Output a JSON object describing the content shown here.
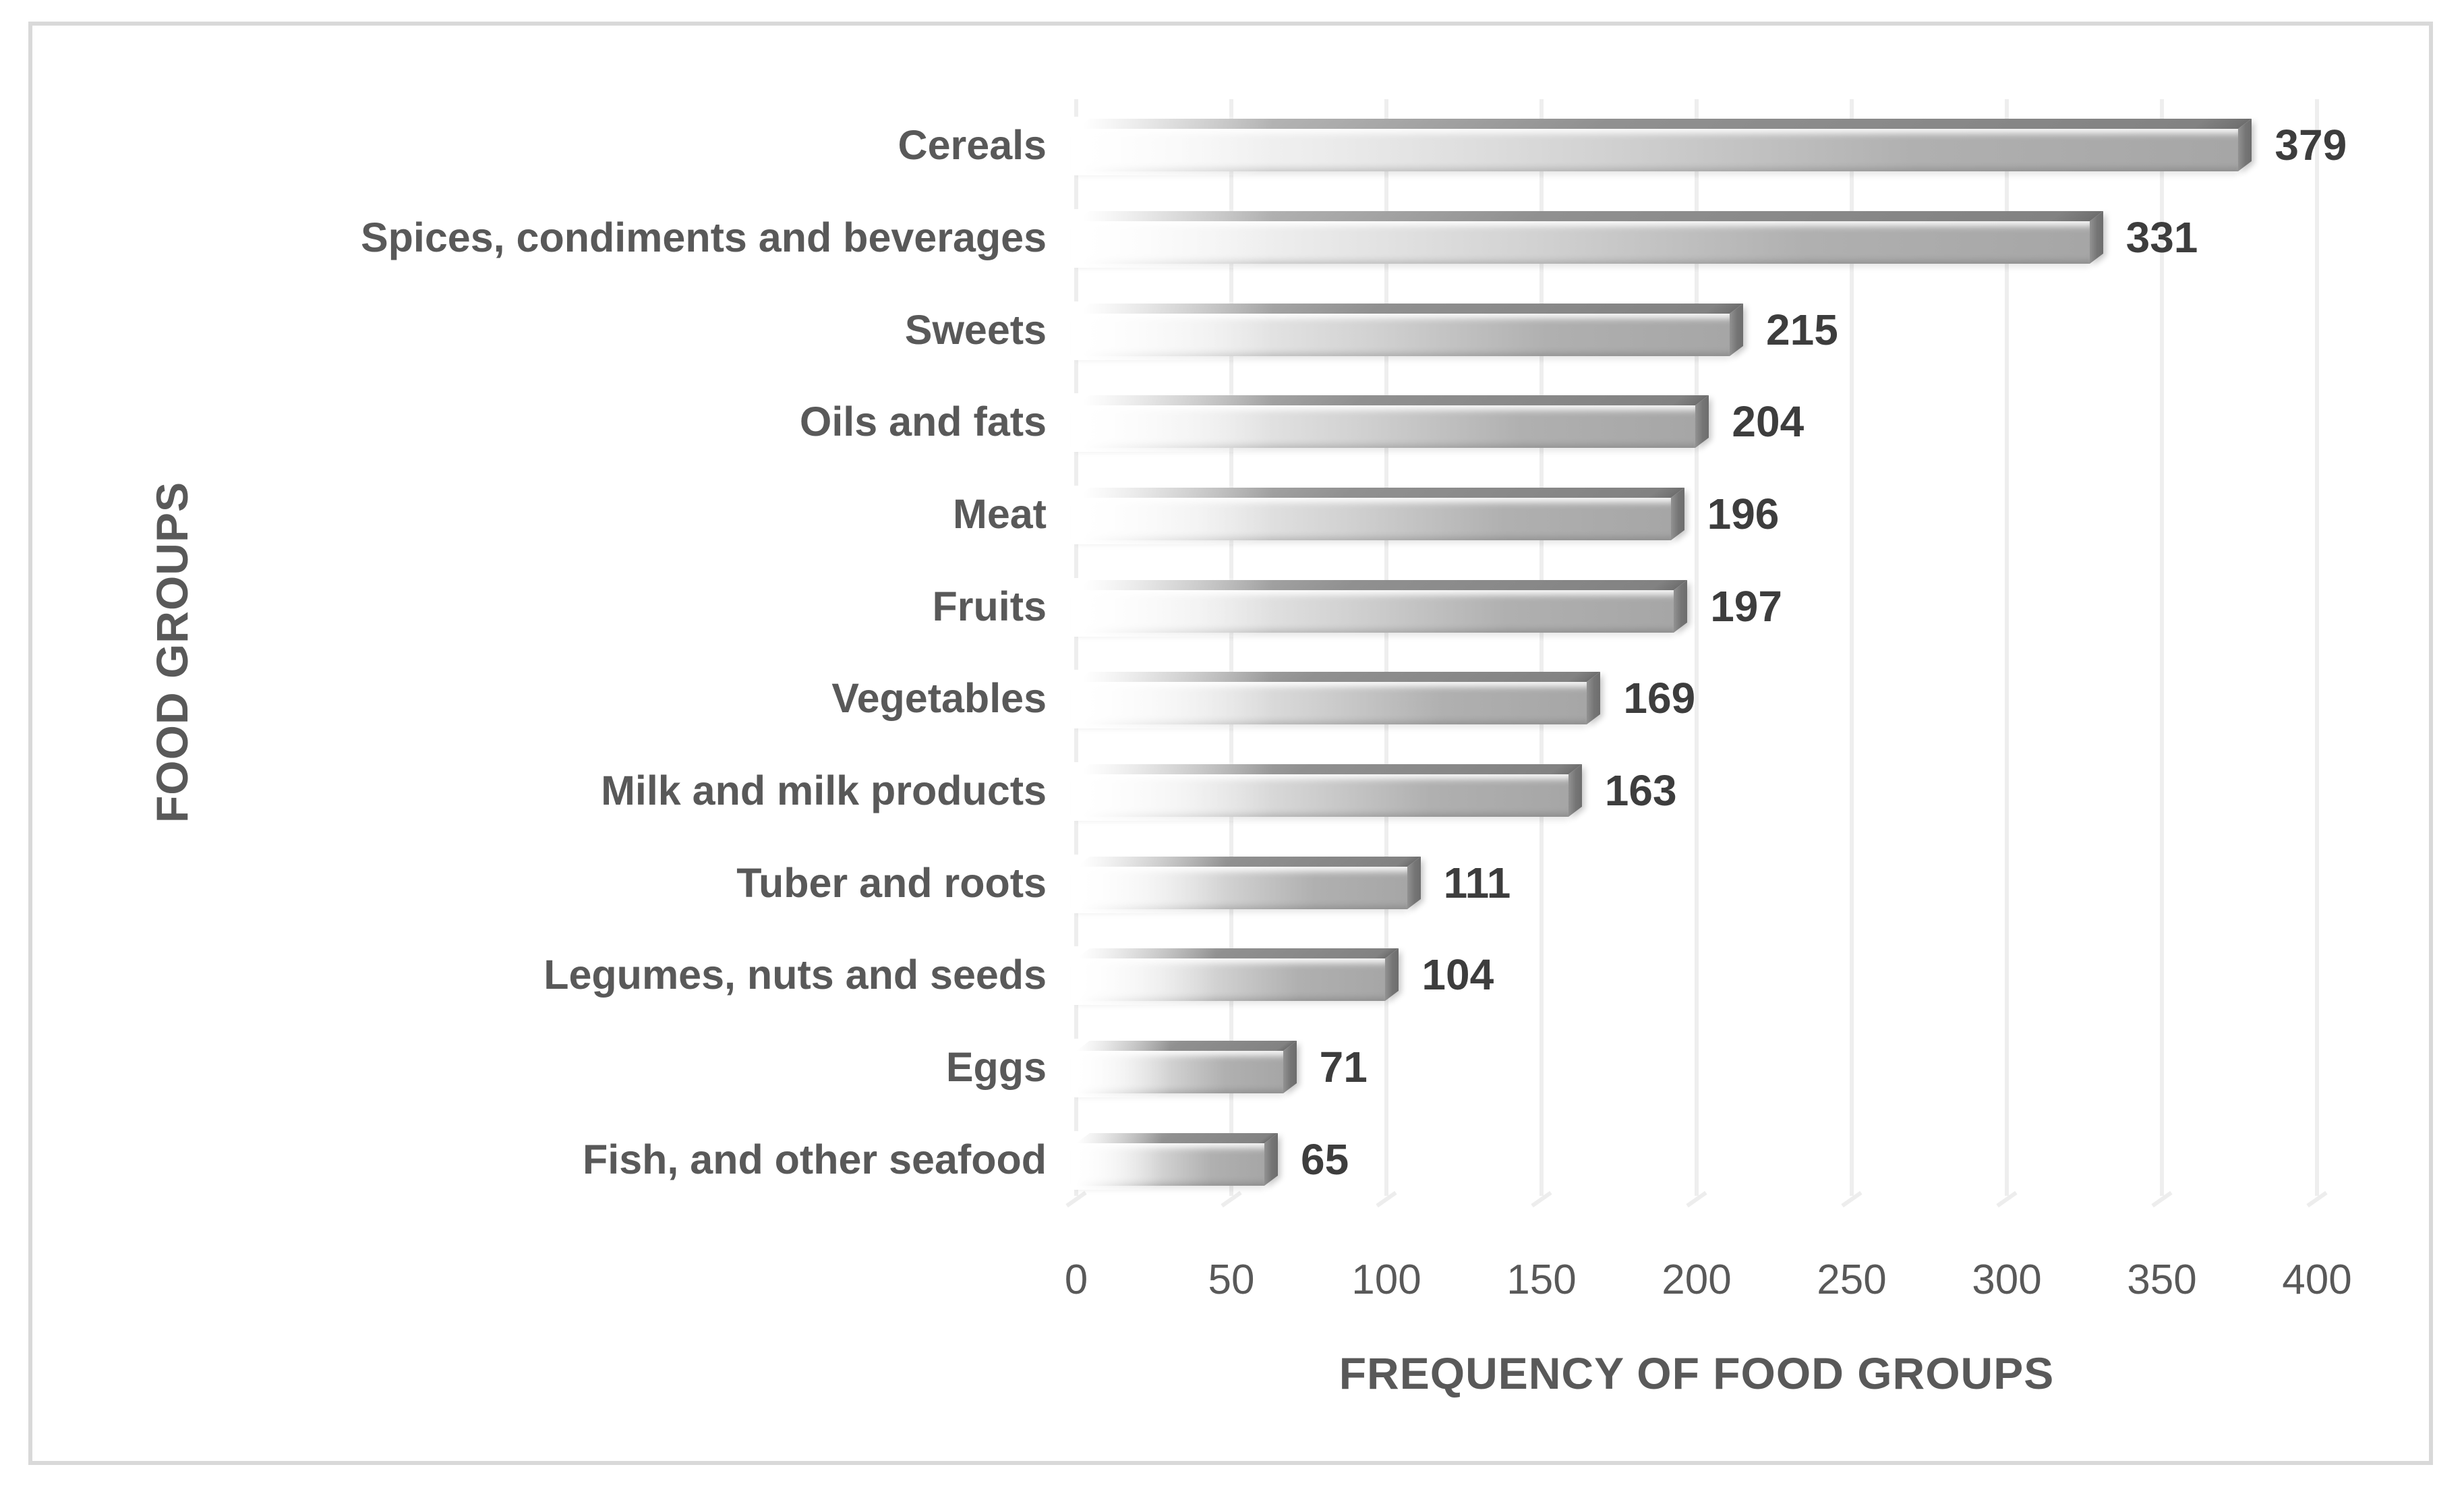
{
  "figure": {
    "background": "#ffffff",
    "border_color": "#d9d9d9"
  },
  "chart_data": {
    "type": "bar",
    "orientation": "horizontal",
    "title": "",
    "xlabel": "FREQUENCY OF FOOD GROUPS",
    "ylabel": "FOOD GROUPS",
    "categories": [
      "Cereals",
      "Spices, condiments and beverages",
      "Sweets",
      "Oils and fats",
      "Meat",
      "Fruits",
      "Vegetables",
      "Milk and milk products",
      "Tuber and roots",
      "Legumes, nuts and seeds",
      "Eggs",
      "Fish, and other seafood"
    ],
    "values": [
      379,
      331,
      215,
      204,
      196,
      197,
      169,
      163,
      111,
      104,
      71,
      65
    ],
    "xlim": [
      0,
      400
    ],
    "x_ticks": [
      0,
      50,
      100,
      150,
      200,
      250,
      300,
      350,
      400
    ],
    "grid": "vertical",
    "gridline_color": "#eeeeee",
    "data_labels": true,
    "bar_style": "3d-gray-gradient",
    "text_color": "#595959",
    "value_color": "#3d3d3d",
    "legend": "none"
  }
}
